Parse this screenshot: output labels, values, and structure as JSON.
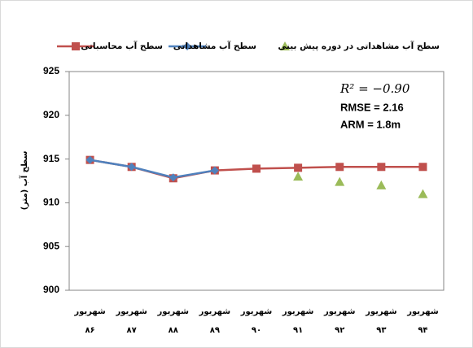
{
  "chart_data": {
    "type": "line",
    "y_label": "سطح آب (متر)",
    "annotations": [
      "R² = −0.90",
      "RMSE = 2.16",
      "ARM = 1.8m"
    ],
    "categories": [
      "شهریور ۸۶",
      "شهریور ۸۷",
      "شهریور ۸۸",
      "شهریور ۸۹",
      "شهریور ۹۰",
      "شهریور ۹۱",
      "شهریور ۹۲",
      "شهریور ۹۳",
      "شهریور ۹۴"
    ],
    "series": [
      {
        "name": "سطح آب محاسباتی",
        "color": "#c0504d",
        "marker": "square",
        "line": true,
        "values": [
          914.9,
          914.1,
          912.8,
          913.7,
          913.9,
          914.0,
          914.1,
          914.1,
          914.1
        ]
      },
      {
        "name": "سطح آب مشاهداتی",
        "color": "#4f81bd",
        "marker": "diamond",
        "line": true,
        "values": [
          914.9,
          914.1,
          912.9,
          913.7,
          null,
          null,
          null,
          null,
          null
        ]
      },
      {
        "name": "سطح آب مشاهداتی در دوره پیش بینی",
        "color": "#9bbb59",
        "marker": "triangle",
        "line": false,
        "values": [
          null,
          null,
          null,
          null,
          null,
          913.0,
          912.4,
          912.0,
          911.0
        ]
      }
    ],
    "ylim": [
      900,
      925
    ],
    "yticks": [
      900,
      905,
      910,
      915,
      920,
      925
    ],
    "grid": false
  }
}
